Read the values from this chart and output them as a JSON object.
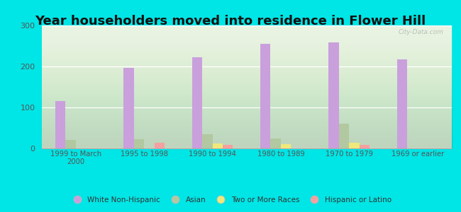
{
  "title": "Year householders moved into residence in Flower Hill",
  "categories": [
    "1999 to March\n2000",
    "1995 to 1998",
    "1990 to 1994",
    "1980 to 1989",
    "1970 to 1979",
    "1969 or earlier"
  ],
  "series": {
    "White Non-Hispanic": [
      115,
      196,
      222,
      255,
      258,
      218
    ],
    "Asian": [
      20,
      22,
      35,
      25,
      60,
      0
    ],
    "Two or More Races": [
      0,
      0,
      12,
      10,
      13,
      0
    ],
    "Hispanic or Latino": [
      0,
      13,
      9,
      0,
      9,
      0
    ]
  },
  "colors": {
    "White Non-Hispanic": "#c9a0dc",
    "Asian": "#b2c8a0",
    "Two or More Races": "#f0e87a",
    "Hispanic or Latino": "#f4a0a0"
  },
  "background_outer": "#00e5e5",
  "background_plot_top": "#e8f0e0",
  "background_plot_bottom": "#d8eecc",
  "ylim": [
    0,
    300
  ],
  "yticks": [
    0,
    100,
    200,
    300
  ],
  "bar_width": 0.15,
  "title_fontsize": 13,
  "watermark": "City-Data.com"
}
